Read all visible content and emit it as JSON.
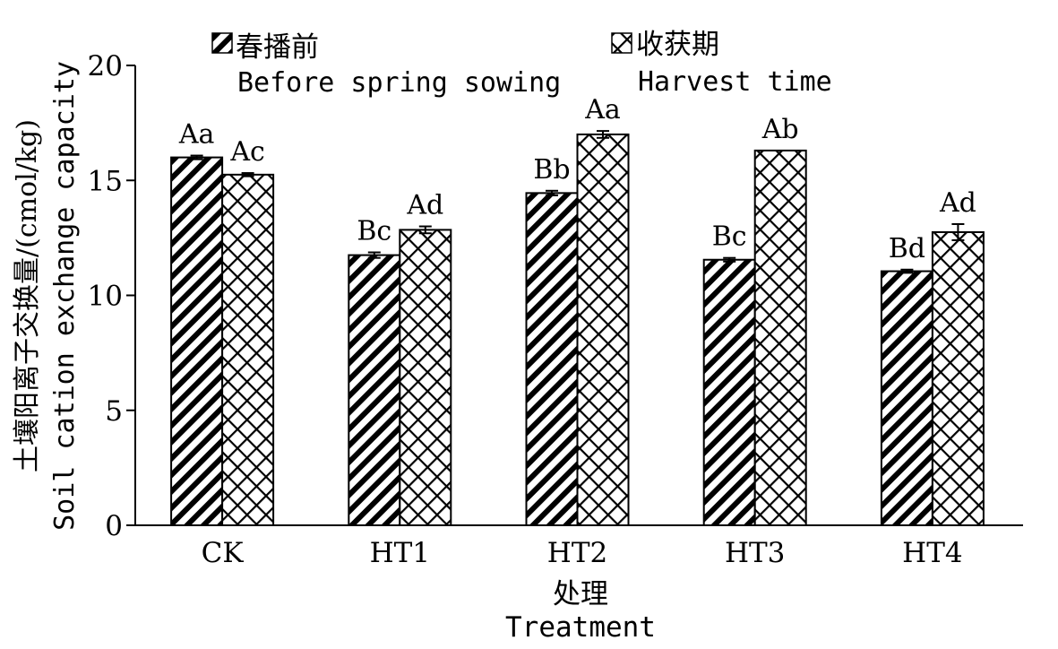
{
  "chart_data": {
    "type": "bar",
    "categories": [
      "CK",
      "HT1",
      "HT2",
      "HT3",
      "HT4"
    ],
    "series": [
      {
        "name": "春播前 Before spring sowing",
        "name_cn": "春播前",
        "name_en": "Before spring sowing",
        "pattern": "diagonal-hatch",
        "values": [
          16.0,
          11.75,
          14.45,
          11.55,
          11.05
        ],
        "errors": [
          0.08,
          0.12,
          0.1,
          0.08,
          0.07
        ],
        "labels": [
          "Aa",
          "Bc",
          "Bb",
          "Bc",
          "Bd"
        ]
      },
      {
        "name": "收获期 Harvest time",
        "name_cn": "收获期",
        "name_en": "Harvest time",
        "pattern": "crosshatch",
        "values": [
          15.25,
          12.85,
          17.0,
          16.3,
          12.75
        ],
        "errors": [
          0.07,
          0.15,
          0.15,
          0.0,
          0.35
        ],
        "labels": [
          "Ac",
          "Ad",
          "Aa",
          "Ab",
          "Ad"
        ]
      }
    ],
    "ylim": [
      0,
      20
    ],
    "yticks": [
      0,
      5,
      10,
      15,
      20
    ],
    "ylabel_cn": "土壤阳离子交换量/(cmol/kg)",
    "ylabel_en": "Soil cation exchange capacity",
    "xlabel_cn": "处理",
    "xlabel_en": "Treatment",
    "legend_position": "top",
    "grid": false
  }
}
